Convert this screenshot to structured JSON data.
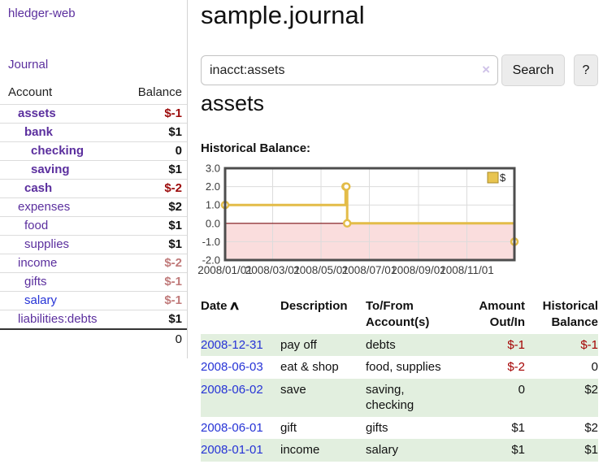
{
  "app": {
    "brand": "hledger-web"
  },
  "sidebar": {
    "journal_label": "Journal",
    "accounts": {
      "header_account": "Account",
      "header_balance": "Balance",
      "rows": [
        {
          "name": "assets",
          "balance": "$-1",
          "depth": 1,
          "bold": true,
          "balance_class": "neg-strong",
          "link_class": ""
        },
        {
          "name": "bank",
          "balance": "$1",
          "depth": 2,
          "bold": true,
          "balance_class": "",
          "link_class": ""
        },
        {
          "name": "checking",
          "balance": "0",
          "depth": 3,
          "bold": true,
          "balance_class": "",
          "link_class": ""
        },
        {
          "name": "saving",
          "balance": "$1",
          "depth": 3,
          "bold": true,
          "balance_class": "",
          "link_class": ""
        },
        {
          "name": "cash",
          "balance": "$-2",
          "depth": 2,
          "bold": true,
          "balance_class": "neg-strong",
          "link_class": ""
        },
        {
          "name": "expenses",
          "balance": "$2",
          "depth": 1,
          "bold": false,
          "balance_class": "",
          "link_class": ""
        },
        {
          "name": "food",
          "balance": "$1",
          "depth": 2,
          "bold": false,
          "balance_class": "",
          "link_class": ""
        },
        {
          "name": "supplies",
          "balance": "$1",
          "depth": 2,
          "bold": false,
          "balance_class": "",
          "link_class": ""
        },
        {
          "name": "income",
          "balance": "$-2",
          "depth": 1,
          "bold": false,
          "balance_class": "neg-light",
          "link_class": ""
        },
        {
          "name": "gifts",
          "balance": "$-1",
          "depth": 2,
          "bold": false,
          "balance_class": "neg-light",
          "link_class": ""
        },
        {
          "name": "salary",
          "balance": "$-1",
          "depth": 2,
          "bold": false,
          "balance_class": "neg-light",
          "link_class": "blue"
        },
        {
          "name": "liabilities:debts",
          "balance": "$1",
          "depth": 1,
          "bold": false,
          "balance_class": "",
          "link_class": ""
        }
      ],
      "total": "0"
    }
  },
  "main": {
    "title": "sample.journal",
    "search": {
      "value": "inacct:assets",
      "clear_icon": "×",
      "button_label": "Search",
      "help_label": "?"
    },
    "section_heading": "assets",
    "chart_label": "Historical Balance:"
  },
  "chart_data": {
    "type": "line",
    "title": "Historical Balance",
    "step": true,
    "series": [
      {
        "name": "$",
        "points": [
          [
            "2008-01-01",
            1
          ],
          [
            "2008-06-01",
            2
          ],
          [
            "2008-06-02",
            2
          ],
          [
            "2008-06-03",
            0
          ],
          [
            "2008-12-31",
            -1
          ]
        ]
      }
    ],
    "x_range": [
      "2008-01-01",
      "2008-12-31"
    ],
    "x_ticks": [
      "2008/01/01",
      "2008/03/01",
      "2008/05/01",
      "2008/07/01",
      "2008/09/01",
      "2008/11/01"
    ],
    "y_ticks": [
      "3.0",
      "2.0",
      "1.0",
      "0.0",
      "-1.0",
      "-2.0"
    ],
    "ylim": [
      -2,
      3
    ],
    "grid": true,
    "legend": {
      "label": "$",
      "position": "top-right"
    },
    "colors": {
      "line": "#e3bc48",
      "marker_fill": "#ffffff",
      "negative_region": "#fadddd",
      "zero_line": "#7b1113",
      "grid": "#dcdcdc",
      "border": "#4d4d4d",
      "legend_fill": "#e8c44f",
      "legend_border": "#a88a28",
      "axis_text": "#3a3a3a"
    }
  },
  "register": {
    "headers": {
      "date": "Date",
      "description": "Description",
      "accounts": "To/From Account(s)",
      "amount": "Amount Out/In",
      "balance": "Historical Balance"
    },
    "sort_icon": "∧",
    "rows": [
      {
        "date": "2008-12-31",
        "description": "pay off",
        "accounts": "debts",
        "amount": "$-1",
        "balance": "$-1",
        "amount_class": "neg",
        "balance_class": "neg",
        "shaded": true
      },
      {
        "date": "2008-06-03",
        "description": "eat & shop",
        "accounts": "food, supplies",
        "amount": "$-2",
        "balance": "0",
        "amount_class": "neg",
        "balance_class": "",
        "shaded": false
      },
      {
        "date": "2008-06-02",
        "description": "save",
        "accounts": "saving, checking",
        "amount": "0",
        "balance": "$2",
        "amount_class": "",
        "balance_class": "",
        "shaded": true
      },
      {
        "date": "2008-06-01",
        "description": "gift",
        "accounts": "gifts",
        "amount": "$1",
        "balance": "$2",
        "amount_class": "",
        "balance_class": "",
        "shaded": false
      },
      {
        "date": "2008-01-01",
        "description": "income",
        "accounts": "salary",
        "amount": "$1",
        "balance": "$1",
        "amount_class": "",
        "balance_class": "",
        "shaded": true
      }
    ]
  }
}
